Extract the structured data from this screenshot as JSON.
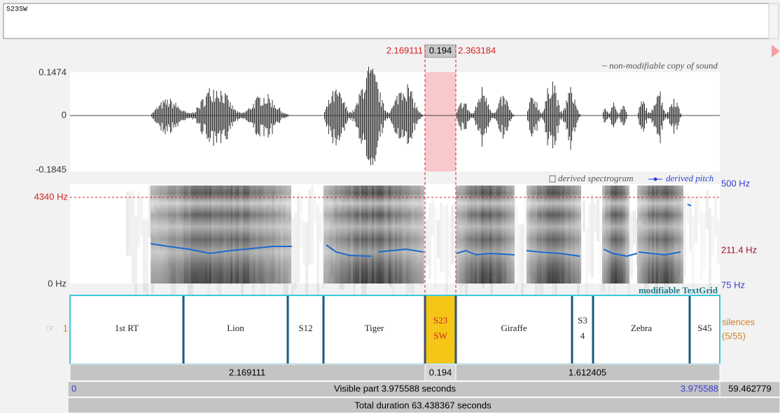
{
  "text_box": "S23SW",
  "selection": {
    "start": "2.169111",
    "length": "0.194",
    "end": "2.363184"
  },
  "waveform": {
    "max": "0.1474",
    "zero": "0",
    "min": "-0.1845",
    "note": "~ non-modifiable copy of sound"
  },
  "spectrogram": {
    "cursor_freq": "4340 Hz",
    "bottom": "0 Hz",
    "legend_spectrogram": "derived spectrogram",
    "legend_pitch": "derived pitch",
    "pitch_top": "500 Hz",
    "pitch_cursor": "211.4 Hz",
    "pitch_bottom": "75 Hz"
  },
  "textgrid": {
    "note": "modifiable TextGrid",
    "tier_number": "1",
    "tier_name": "silences",
    "tier_count": "(5/55)",
    "intervals": [
      {
        "lines": [
          "1st RT"
        ]
      },
      {
        "lines": [
          "Lion"
        ]
      },
      {
        "lines": [
          "S12"
        ]
      },
      {
        "lines": [
          "Tiger"
        ]
      },
      {
        "lines": [
          "S23",
          "SW"
        ]
      },
      {
        "lines": [
          "Giraffe"
        ]
      },
      {
        "lines": [
          "S3",
          "4"
        ]
      },
      {
        "lines": [
          "Zebra"
        ]
      },
      {
        "lines": [
          "S45"
        ]
      }
    ]
  },
  "bars": {
    "before": "2.169111",
    "selected": "0.194",
    "after": "1.612405",
    "visible_start": "0",
    "visible": "Visible part 3.975588 seconds",
    "visible_end": "3.975588",
    "remaining": "59.462779",
    "total": "Total duration 63.438367 seconds"
  }
}
